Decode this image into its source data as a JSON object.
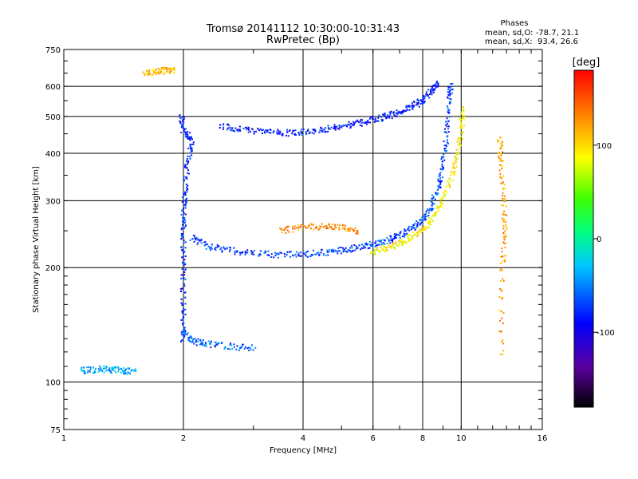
{
  "chart_data": {
    "type": "scatter",
    "title": "Tromsø 20141112 10:30:00-10:31:43",
    "subtitle": "RwPretec (Bp)",
    "xlabel": "Frequency [MHz]",
    "ylabel": "Stationary phase Virtual Height [km]",
    "xscale": "log",
    "yscale": "log",
    "xlim": [
      1,
      16
    ],
    "ylim": [
      75,
      750
    ],
    "x_ticks": [
      1,
      2,
      4,
      6,
      8,
      10,
      16
    ],
    "y_ticks": [
      75,
      100,
      200,
      300,
      400,
      500,
      600,
      750
    ],
    "grid": true,
    "phase_stats": {
      "heading": "Phases",
      "o_line": "mean, sd,O: -78.7, 21.1",
      "x_line": "mean, sd,X:  93.4, 26.6"
    },
    "colorbar": {
      "label": "[deg]",
      "range": [
        -180,
        180
      ],
      "ticks": [
        100,
        0,
        -100
      ],
      "colormap": "rainbow"
    },
    "series": [
      {
        "traces": [
          {
            "phase": -80,
            "points": [
              [
                2.0,
                130
              ],
              [
                2.0,
                160
              ],
              [
                2.0,
                200
              ],
              [
                2.0,
                240
              ],
              [
                2.0,
                280
              ],
              [
                2.02,
                320
              ],
              [
                2.05,
                380
              ],
              [
                2.1,
                430
              ],
              [
                2.0,
                460
              ],
              [
                1.98,
                500
              ]
            ]
          },
          {
            "phase": -70,
            "points": [
              [
                2.1,
                240
              ],
              [
                2.3,
                228
              ],
              [
                2.6,
                222
              ],
              [
                3.0,
                218
              ],
              [
                3.5,
                216
              ],
              [
                4.0,
                217
              ],
              [
                4.5,
                219
              ],
              [
                5.0,
                222
              ],
              [
                5.5,
                226
              ],
              [
                6.0,
                230
              ],
              [
                6.5,
                235
              ],
              [
                7.0,
                243
              ],
              [
                7.5,
                253
              ],
              [
                8.0,
                268
              ],
              [
                8.4,
                290
              ],
              [
                8.8,
                330
              ],
              [
                9.0,
                380
              ],
              [
                9.2,
                450
              ],
              [
                9.3,
                540
              ],
              [
                9.4,
                600
              ]
            ]
          },
          {
            "phase": -85,
            "points": [
              [
                2.5,
                470
              ],
              [
                2.8,
                462
              ],
              [
                3.2,
                455
              ],
              [
                3.6,
                452
              ],
              [
                4.0,
                455
              ],
              [
                4.5,
                462
              ],
              [
                5.0,
                470
              ],
              [
                5.5,
                480
              ],
              [
                6.0,
                490
              ],
              [
                6.5,
                500
              ],
              [
                7.0,
                512
              ],
              [
                7.5,
                530
              ],
              [
                8.0,
                550
              ],
              [
                8.4,
                580
              ],
              [
                8.7,
                610
              ]
            ]
          },
          {
            "phase": -60,
            "points": [
              [
                2.0,
                135
              ],
              [
                2.1,
                128
              ],
              [
                2.3,
                126
              ],
              [
                2.6,
                124
              ],
              [
                3.0,
                123
              ]
            ]
          },
          {
            "phase": -40,
            "points": [
              [
                1.1,
                107
              ],
              [
                1.2,
                108
              ],
              [
                1.3,
                108
              ],
              [
                1.4,
                107
              ],
              [
                1.5,
                107
              ]
            ]
          }
        ]
      },
      {
        "traces": [
          {
            "phase": 90,
            "points": [
              [
                6.0,
                220
              ],
              [
                6.5,
                225
              ],
              [
                7.0,
                232
              ],
              [
                7.5,
                240
              ],
              [
                8.0,
                252
              ],
              [
                8.5,
                270
              ],
              [
                9.0,
                300
              ],
              [
                9.5,
                350
              ],
              [
                9.8,
                400
              ],
              [
                10.0,
                460
              ],
              [
                10.1,
                520
              ]
            ]
          },
          {
            "phase": 110,
            "points": [
              [
                1.6,
                650
              ],
              [
                1.7,
                655
              ],
              [
                1.8,
                660
              ],
              [
                1.9,
                662
              ]
            ]
          },
          {
            "phase": 130,
            "points": [
              [
                3.5,
                250
              ],
              [
                4.0,
                255
              ],
              [
                4.5,
                257
              ],
              [
                5.0,
                255
              ],
              [
                5.5,
                250
              ]
            ]
          },
          {
            "phase": 120,
            "points": [
              [
                12.5,
                440
              ],
              [
                12.6,
                380
              ],
              [
                12.8,
                300
              ],
              [
                12.9,
                250
              ],
              [
                12.7,
                200
              ],
              [
                12.6,
                120
              ]
            ]
          }
        ]
      }
    ]
  }
}
